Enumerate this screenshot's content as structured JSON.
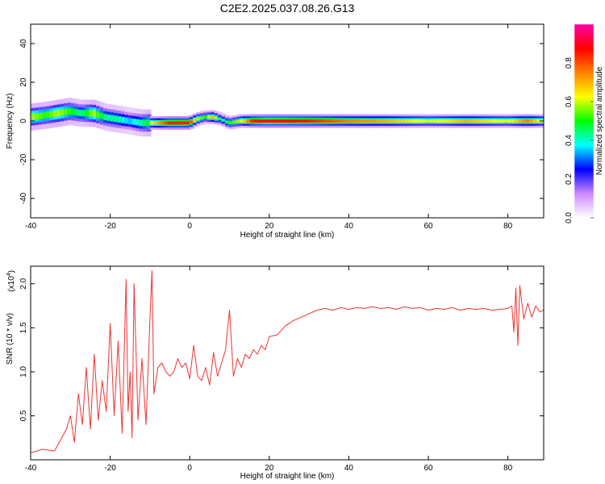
{
  "title": "C2E2.2025.037.08.26.G13",
  "colorbar": {
    "label": "Normalized spectral amplitude",
    "ticks": [
      "0.0",
      "0.2",
      "0.4",
      "0.6",
      "0.8"
    ],
    "tick_values": [
      0.0,
      0.2,
      0.4,
      0.6,
      0.8
    ],
    "colors": [
      "#ffffff",
      "#cc88ff",
      "#0000ff",
      "#00ffff",
      "#00ff00",
      "#ffff00",
      "#ff7f00",
      "#ff0000",
      "#ff00aa"
    ]
  },
  "chart_data": [
    {
      "type": "heatmap",
      "name": "spectrogram",
      "xlabel": "Height of straight line (km)",
      "ylabel": "Frequency (Hz)",
      "xlim": [
        -40,
        89
      ],
      "ylim": [
        -50,
        50
      ],
      "xticks": [
        "-40",
        "-20",
        "0",
        "20",
        "40",
        "60",
        "80"
      ],
      "xtick_values": [
        -40,
        -20,
        0,
        20,
        40,
        60,
        80
      ],
      "yticks": [
        "40",
        "20",
        "0",
        "-20",
        "-40"
      ],
      "ytick_values": [
        40,
        20,
        0,
        -20,
        -40
      ],
      "ridge": {
        "x": [
          -40,
          -36,
          -33,
          -30,
          -27,
          -24,
          -21,
          -18,
          -15,
          -12,
          -10,
          -5,
          0,
          2,
          4,
          6,
          8,
          10,
          13,
          16,
          20,
          30,
          40,
          50,
          60,
          70,
          80,
          85,
          89
        ],
        "freq": [
          2,
          3,
          4,
          5,
          4,
          4,
          2,
          1,
          0,
          -1,
          -1,
          -1,
          -1,
          1,
          2,
          2,
          1,
          -1,
          0,
          0,
          0,
          0,
          0,
          0,
          0,
          0,
          0,
          0,
          0
        ],
        "peak": [
          0.7,
          0.6,
          0.7,
          0.6,
          0.5,
          0.7,
          0.5,
          0.5,
          0.4,
          0.5,
          0.6,
          0.85,
          0.85,
          0.6,
          0.5,
          0.7,
          0.4,
          0.5,
          0.6,
          0.85,
          0.9,
          0.85,
          0.75,
          0.7,
          0.6,
          0.7,
          0.6,
          0.75,
          0.6
        ]
      }
    },
    {
      "type": "line",
      "name": "snr",
      "xlabel": "Height of straight line (km)",
      "ylabel": "SNR (10 * v/v)",
      "multiplier": "(x10^4)",
      "multiplier_base": "(x10",
      "multiplier_exp": "4",
      "multiplier_close": ")",
      "xlim": [
        -40,
        89
      ],
      "ylim": [
        0.0,
        2.2
      ],
      "xticks": [
        "-40",
        "-20",
        "0",
        "20",
        "40",
        "60",
        "80"
      ],
      "xtick_values": [
        -40,
        -20,
        0,
        20,
        40,
        60,
        80
      ],
      "yticks": [
        "0.5",
        "1.0",
        "1.5",
        "2.0"
      ],
      "ytick_values": [
        0.5,
        1.0,
        1.5,
        2.0
      ],
      "color": "#ee3333",
      "x": [
        -40,
        -37,
        -34,
        -31,
        -30,
        -29,
        -28,
        -27,
        -26,
        -25,
        -24,
        -23,
        -22,
        -21,
        -20,
        -19,
        -18,
        -17,
        -16,
        -15.5,
        -15,
        -14.5,
        -14,
        -13,
        -12,
        -11,
        -10,
        -9.5,
        -9,
        -8,
        -7,
        -6,
        -5,
        -4,
        -3,
        -2,
        -1,
        0,
        1,
        2,
        3,
        4,
        5,
        6,
        7,
        8,
        9,
        10,
        11,
        12,
        13,
        14,
        15,
        16,
        17,
        18,
        19,
        20,
        22,
        24,
        26,
        28,
        30,
        32,
        34,
        36,
        38,
        40,
        42,
        44,
        46,
        48,
        50,
        52,
        54,
        56,
        58,
        60,
        62,
        64,
        66,
        68,
        70,
        72,
        74,
        76,
        78,
        80,
        81,
        81.5,
        82,
        82.5,
        83,
        84,
        85,
        86,
        87,
        88,
        89
      ],
      "y": [
        0.08,
        0.12,
        0.1,
        0.35,
        0.5,
        0.2,
        0.75,
        0.4,
        1.05,
        0.35,
        1.2,
        0.45,
        0.9,
        0.55,
        1.55,
        0.5,
        1.35,
        0.3,
        2.05,
        0.55,
        1.0,
        0.25,
        2.0,
        0.45,
        1.15,
        0.4,
        1.6,
        2.15,
        0.75,
        1.05,
        1.1,
        1.0,
        0.95,
        1.0,
        1.15,
        1.05,
        1.1,
        0.92,
        1.3,
        0.95,
        0.9,
        1.05,
        0.85,
        1.22,
        0.95,
        1.1,
        1.25,
        1.7,
        0.95,
        1.15,
        1.05,
        1.2,
        1.15,
        1.25,
        1.2,
        1.3,
        1.25,
        1.4,
        1.42,
        1.52,
        1.58,
        1.62,
        1.66,
        1.7,
        1.72,
        1.7,
        1.73,
        1.71,
        1.73,
        1.72,
        1.74,
        1.72,
        1.73,
        1.71,
        1.74,
        1.72,
        1.73,
        1.7,
        1.72,
        1.71,
        1.73,
        1.7,
        1.72,
        1.71,
        1.72,
        1.7,
        1.71,
        1.72,
        1.75,
        1.45,
        1.95,
        1.3,
        1.98,
        1.6,
        1.78,
        1.62,
        1.75,
        1.68,
        1.7
      ]
    }
  ]
}
